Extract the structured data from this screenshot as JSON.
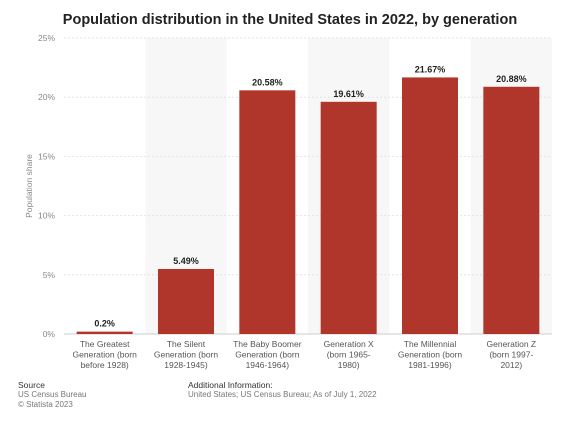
{
  "chart_data": {
    "type": "bar",
    "title": "Population distribution in the United States in 2022, by generation",
    "ylabel": "Population share",
    "xlabel": "",
    "ylim": [
      0,
      25
    ],
    "yticks": [
      "0%",
      "5%",
      "10%",
      "15%",
      "20%",
      "25%"
    ],
    "ytick_values": [
      0,
      5,
      10,
      15,
      20,
      25
    ],
    "categories": [
      [
        "The Greatest",
        "Generation (born",
        "before 1928)"
      ],
      [
        "The Silent",
        "Generation (born",
        "1928-1945)"
      ],
      [
        "The Baby Boomer",
        "Generation (born",
        "1946-1964)"
      ],
      [
        "Generation X",
        "(born 1965-",
        "1980)"
      ],
      [
        "The Millennial",
        "Generation (born",
        "1981-1996)"
      ],
      [
        "Generation Z",
        "(born 1997-",
        "2012)"
      ]
    ],
    "values": [
      0.2,
      5.49,
      20.58,
      19.61,
      21.67,
      20.88
    ],
    "value_labels": [
      "0.2%",
      "5.49%",
      "20.58%",
      "19.61%",
      "21.67%",
      "20.88%"
    ],
    "bar_color": "#b0352b",
    "band_color": "#f7f7f7",
    "grid": true,
    "legend": "none"
  },
  "footer": {
    "source_head": "Source",
    "source_lines": [
      "US Census Bureau",
      "© Statista 2023"
    ],
    "info_head": "Additional Information:",
    "info_text": "United States; US Census Bureau; As of July 1, 2022"
  }
}
